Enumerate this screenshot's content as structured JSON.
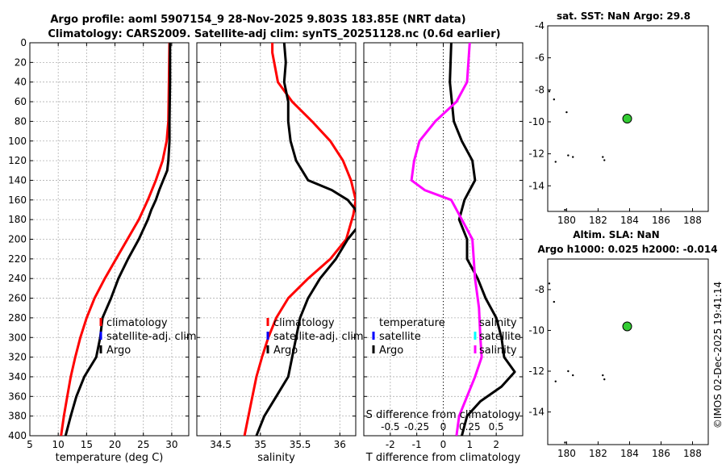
{
  "title_line1": "Argo profile: aoml 5907154_9 28-Nov-2025 9.803S 183.85E (NRT data)",
  "title_line2": "Climatology: CARS2009. Satellite-adj clim: synTS_20251128.nc (0.6d earlier)",
  "depth_ticks": [
    "0",
    "20",
    "40",
    "60",
    "80",
    "100",
    "120",
    "140",
    "160",
    "180",
    "200",
    "220",
    "240",
    "260",
    "280",
    "300",
    "320",
    "340",
    "360",
    "380",
    "400"
  ],
  "colors": {
    "climatology": "#ff0000",
    "satellite": "#0000ff",
    "argo": "#000000",
    "salinity_diff": "#ff00ff",
    "salinity_sat": "#00ffff",
    "marker": "#33cc33"
  },
  "chart_data": [
    {
      "type": "line",
      "id": "temperature",
      "xlabel": "temperature (deg C)",
      "xlim": [
        5,
        33
      ],
      "ylim": [
        0,
        400
      ],
      "yreversed": true,
      "grid": true,
      "x_ticks": [
        "5",
        "10",
        "15",
        "20",
        "25",
        "30"
      ],
      "legend": [
        "climatology",
        "satellite-adj. clim",
        "Argo"
      ],
      "series": [
        {
          "name": "climatology",
          "color": "#ff0000",
          "points": [
            [
              29.6,
              0
            ],
            [
              29.5,
              40
            ],
            [
              29.4,
              80
            ],
            [
              29.1,
              100
            ],
            [
              28.4,
              120
            ],
            [
              27.2,
              140
            ],
            [
              25.8,
              160
            ],
            [
              24.2,
              180
            ],
            [
              22.2,
              200
            ],
            [
              20.2,
              220
            ],
            [
              18.2,
              240
            ],
            [
              16.4,
              260
            ],
            [
              15.0,
              280
            ],
            [
              13.9,
              300
            ],
            [
              13.0,
              320
            ],
            [
              12.2,
              340
            ],
            [
              11.6,
              360
            ],
            [
              11.0,
              380
            ],
            [
              10.5,
              400
            ]
          ]
        },
        {
          "name": "Argo",
          "color": "#000000",
          "points": [
            [
              29.7,
              0
            ],
            [
              29.7,
              40
            ],
            [
              29.6,
              80
            ],
            [
              29.6,
              100
            ],
            [
              29.4,
              120
            ],
            [
              29.2,
              130
            ],
            [
              28.5,
              140
            ],
            [
              27.8,
              150
            ],
            [
              27.2,
              160
            ],
            [
              26.4,
              170
            ],
            [
              25.8,
              180
            ],
            [
              24.2,
              200
            ],
            [
              22.3,
              220
            ],
            [
              20.6,
              240
            ],
            [
              19.3,
              260
            ],
            [
              17.8,
              280
            ],
            [
              17.4,
              300
            ],
            [
              16.7,
              320
            ],
            [
              14.6,
              340
            ],
            [
              13.2,
              360
            ],
            [
              12.2,
              380
            ],
            [
              11.3,
              400
            ]
          ]
        }
      ]
    },
    {
      "type": "line",
      "id": "salinity",
      "xlabel": "salinity",
      "xlim": [
        34.2,
        36.2
      ],
      "ylim": [
        0,
        400
      ],
      "yreversed": true,
      "grid": true,
      "x_ticks": [
        "34.5",
        "35",
        "35.5",
        "36"
      ],
      "legend": [
        "climatology",
        "satellite-adj. clim",
        "Argo"
      ],
      "series": [
        {
          "name": "climatology",
          "color": "#ff0000",
          "points": [
            [
              35.15,
              0
            ],
            [
              35.15,
              10
            ],
            [
              35.22,
              40
            ],
            [
              35.4,
              60
            ],
            [
              35.65,
              80
            ],
            [
              35.88,
              100
            ],
            [
              36.04,
              120
            ],
            [
              36.14,
              140
            ],
            [
              36.2,
              160
            ],
            [
              36.17,
              175
            ],
            [
              36.08,
              200
            ],
            [
              35.88,
              220
            ],
            [
              35.6,
              240
            ],
            [
              35.35,
              260
            ],
            [
              35.2,
              280
            ],
            [
              35.1,
              300
            ],
            [
              35.02,
              320
            ],
            [
              34.95,
              340
            ],
            [
              34.9,
              360
            ],
            [
              34.85,
              380
            ],
            [
              34.8,
              400
            ]
          ]
        },
        {
          "name": "Argo",
          "color": "#000000",
          "points": [
            [
              35.3,
              0
            ],
            [
              35.32,
              20
            ],
            [
              35.3,
              40
            ],
            [
              35.35,
              60
            ],
            [
              35.35,
              80
            ],
            [
              35.38,
              100
            ],
            [
              35.45,
              120
            ],
            [
              35.6,
              140
            ],
            [
              35.9,
              150
            ],
            [
              36.1,
              160
            ],
            [
              36.2,
              170
            ],
            [
              36.25,
              185
            ],
            [
              36.1,
              200
            ],
            [
              35.95,
              220
            ],
            [
              35.75,
              240
            ],
            [
              35.6,
              260
            ],
            [
              35.5,
              280
            ],
            [
              35.45,
              300
            ],
            [
              35.4,
              320
            ],
            [
              35.35,
              340
            ],
            [
              35.2,
              360
            ],
            [
              35.05,
              380
            ],
            [
              34.95,
              400
            ]
          ]
        }
      ]
    },
    {
      "type": "line",
      "id": "difference",
      "xlabel": "T difference from climatology",
      "xlim": [
        -3,
        3
      ],
      "ylim": [
        0,
        400
      ],
      "yreversed": true,
      "grid": true,
      "x_ticks": [
        "-2",
        "-1",
        "0",
        "1",
        "2"
      ],
      "x2label": "S difference from climatology",
      "x2_ticks": [
        "-0.5",
        "-0.25",
        "0",
        "0.25",
        "0.5"
      ],
      "legend": [
        "temperature",
        "satellite",
        "Argo",
        "salinity",
        "satellite",
        "salinity"
      ],
      "series": [
        {
          "name": "T diff",
          "color": "#000000",
          "points": [
            [
              0.3,
              0
            ],
            [
              0.25,
              40
            ],
            [
              0.4,
              80
            ],
            [
              0.7,
              100
            ],
            [
              1.1,
              120
            ],
            [
              1.2,
              140
            ],
            [
              1.0,
              150
            ],
            [
              0.8,
              160
            ],
            [
              0.6,
              180
            ],
            [
              0.9,
              200
            ],
            [
              0.9,
              220
            ],
            [
              1.3,
              240
            ],
            [
              1.6,
              260
            ],
            [
              2.0,
              280
            ],
            [
              2.2,
              300
            ],
            [
              2.3,
              320
            ],
            [
              2.7,
              335
            ],
            [
              2.2,
              350
            ],
            [
              1.4,
              365
            ],
            [
              0.9,
              380
            ],
            [
              0.7,
              400
            ]
          ]
        },
        {
          "name": "S diff",
          "color": "#ff00ff",
          "points": [
            [
              1.0,
              0
            ],
            [
              0.9,
              40
            ],
            [
              0.5,
              60
            ],
            [
              -0.3,
              80
            ],
            [
              -0.9,
              100
            ],
            [
              -1.1,
              120
            ],
            [
              -1.2,
              140
            ],
            [
              -0.7,
              150
            ],
            [
              0.3,
              160
            ],
            [
              0.7,
              180
            ],
            [
              1.1,
              200
            ],
            [
              1.2,
              240
            ],
            [
              1.35,
              270
            ],
            [
              1.4,
              300
            ],
            [
              1.45,
              320
            ],
            [
              1.2,
              340
            ],
            [
              0.9,
              360
            ],
            [
              0.6,
              380
            ],
            [
              0.5,
              400
            ]
          ]
        }
      ]
    },
    {
      "type": "scatter",
      "id": "sst_map",
      "title": "sat. SST: NaN Argo: 29.8",
      "xlim": [
        178.8,
        189
      ],
      "ylim": [
        -15.6,
        -4
      ],
      "x_ticks": [
        "180",
        "182",
        "184",
        "186",
        "188"
      ],
      "y_ticks": [
        "-4",
        "-6",
        "-8",
        "-10",
        "-12",
        "-14"
      ],
      "profile_location": [
        183.85,
        -9.803
      ],
      "islands": [
        [
          178.9,
          -8.1
        ],
        [
          179.2,
          -8.6
        ],
        [
          180.0,
          -9.4
        ],
        [
          179.3,
          -12.5
        ],
        [
          180.1,
          -12.1
        ],
        [
          180.4,
          -12.2
        ],
        [
          182.3,
          -12.2
        ],
        [
          182.4,
          -12.4
        ],
        [
          179.9,
          -15.5
        ]
      ]
    },
    {
      "type": "scatter",
      "id": "sla_map",
      "title": "Altim. SLA: NaN",
      "xlim": [
        178.8,
        189
      ],
      "ylim": [
        -15.6,
        -6.5
      ],
      "x_ticks": [
        "180",
        "182",
        "184",
        "186",
        "188"
      ],
      "y_ticks": [
        "-8",
        "-10",
        "-12",
        "-14"
      ],
      "profile_location": [
        183.85,
        -9.803
      ],
      "islands": [
        [
          178.9,
          -7.7
        ],
        [
          179.2,
          -8.6
        ],
        [
          179.3,
          -12.5
        ],
        [
          180.1,
          -12.0
        ],
        [
          180.4,
          -12.2
        ],
        [
          182.3,
          -12.2
        ],
        [
          182.4,
          -12.4
        ],
        [
          179.9,
          -15.5
        ]
      ]
    }
  ],
  "argo_h_text": "Argo h1000: 0.025 h2000: -0.014",
  "footer_stamp": "©IMOS 02-Dec-2025 19:41:14"
}
